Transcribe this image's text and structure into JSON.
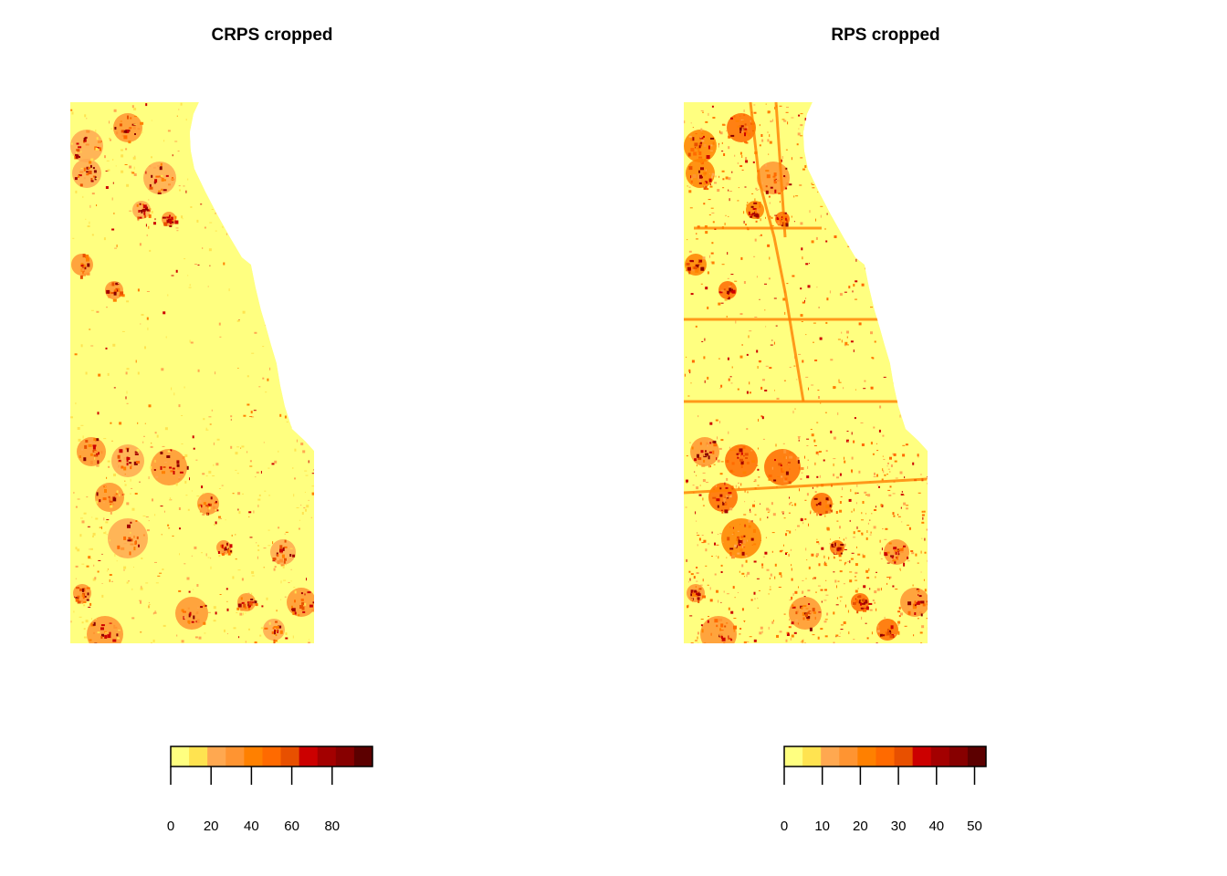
{
  "panels": [
    {
      "title": "CRPS cropped",
      "legend": {
        "colors": [
          "#FFFF80",
          "#FFE350",
          "#FFA850",
          "#FF9431",
          "#FF8000",
          "#FF6A00",
          "#E85000",
          "#CC0000",
          "#A30000",
          "#870000",
          "#5C0000"
        ],
        "tick_labels": [
          "0",
          "20",
          "40",
          "60",
          "80"
        ],
        "tick_values": [
          0,
          20,
          40,
          60,
          80
        ],
        "range": [
          0,
          100
        ]
      }
    },
    {
      "title": "RPS cropped",
      "legend": {
        "colors": [
          "#FFFF80",
          "#FFE350",
          "#FFA850",
          "#FF9431",
          "#FF8000",
          "#FF6A00",
          "#E85000",
          "#CC0000",
          "#A30000",
          "#870000",
          "#5C0000"
        ],
        "tick_labels": [
          "0",
          "10",
          "20",
          "30",
          "40",
          "50"
        ],
        "tick_values": [
          0,
          10,
          20,
          30,
          40,
          50
        ],
        "range": [
          0,
          53
        ]
      }
    }
  ],
  "map_base_color": "#FFFF80"
}
